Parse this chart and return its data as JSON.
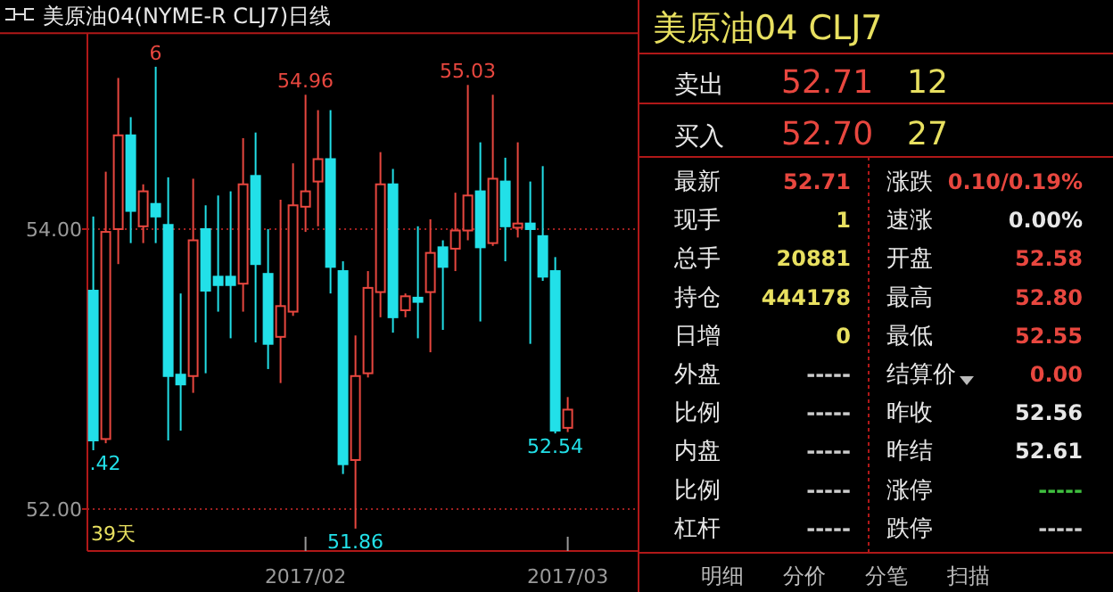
{
  "chart_data": [
    {
      "type": "candlestick",
      "title": "美原油04(NYME-R CLJ7)日线",
      "categories": [
        null,
        null,
        null,
        null,
        null,
        null,
        null,
        null,
        null,
        null,
        null,
        null,
        null,
        null,
        null,
        null,
        null,
        "2017/02",
        null,
        null,
        null,
        null,
        null,
        null,
        null,
        null,
        null,
        null,
        null,
        null,
        null,
        null,
        null,
        null,
        null,
        null,
        null,
        null,
        "2017/03"
      ],
      "ohlc": [
        [
          53.56,
          54.09,
          52.42,
          52.49
        ],
        [
          52.5,
          54.41,
          52.47,
          53.98
        ],
        [
          54.0,
          55.08,
          53.75,
          54.67
        ],
        [
          54.67,
          54.8,
          53.9,
          54.13
        ],
        [
          54.02,
          54.32,
          53.9,
          54.27
        ],
        [
          54.18,
          55.16,
          53.9,
          54.09
        ],
        [
          54.03,
          54.37,
          52.49,
          52.95
        ],
        [
          52.96,
          53.54,
          52.56,
          52.89
        ],
        [
          52.95,
          54.36,
          52.83,
          53.92
        ],
        [
          54.0,
          54.17,
          52.97,
          53.56
        ],
        [
          53.66,
          54.24,
          53.41,
          53.6
        ],
        [
          53.66,
          54.27,
          53.22,
          53.6
        ],
        [
          53.61,
          54.65,
          53.41,
          54.32
        ],
        [
          54.38,
          54.69,
          53.19,
          53.75
        ],
        [
          53.68,
          54.0,
          53.0,
          53.18
        ],
        [
          53.23,
          54.21,
          52.9,
          53.45
        ],
        [
          53.41,
          54.47,
          53.38,
          54.17
        ],
        [
          54.16,
          54.96,
          53.98,
          54.27
        ],
        [
          54.34,
          54.85,
          54.02,
          54.5
        ],
        [
          54.5,
          54.85,
          53.54,
          53.73
        ],
        [
          53.7,
          53.77,
          52.25,
          52.32
        ],
        [
          52.35,
          53.24,
          51.86,
          52.95
        ],
        [
          52.97,
          53.7,
          52.94,
          53.58
        ],
        [
          53.55,
          54.55,
          53.37,
          54.32
        ],
        [
          54.32,
          54.43,
          53.26,
          53.37
        ],
        [
          53.42,
          53.54,
          53.37,
          53.52
        ],
        [
          53.51,
          54.02,
          53.22,
          53.48
        ],
        [
          53.55,
          54.07,
          53.12,
          53.83
        ],
        [
          53.87,
          53.92,
          53.28,
          53.73
        ],
        [
          53.86,
          54.26,
          53.7,
          53.99
        ],
        [
          53.99,
          55.03,
          53.92,
          54.24
        ],
        [
          54.27,
          54.62,
          53.34,
          53.87
        ],
        [
          53.9,
          54.96,
          53.88,
          54.36
        ],
        [
          54.34,
          54.51,
          53.77,
          54.02
        ],
        [
          54.01,
          54.62,
          53.94,
          54.04
        ],
        [
          54.04,
          54.34,
          53.18,
          54.0
        ],
        [
          53.95,
          54.45,
          53.63,
          53.66
        ],
        [
          53.7,
          53.8,
          52.54,
          52.56
        ],
        [
          52.58,
          52.8,
          52.55,
          52.71
        ]
      ],
      "ylim": [
        51.7,
        55.4
      ],
      "yticks": [
        {
          "value": 52,
          "label": "52.00"
        },
        {
          "value": 54,
          "label": "54.00"
        }
      ],
      "grid": "y",
      "annotations": [
        {
          "text": "6",
          "y": 55.16
        },
        {
          "text": "54.96",
          "y": 54.96
        },
        {
          "text": "55.03",
          "y": 55.03
        },
        {
          "text": ".42",
          "y": 52.42
        },
        {
          "text": "51.86",
          "y": 51.86
        },
        {
          "text": "52.54",
          "y": 52.54
        },
        "39天"
      ]
    },
    {
      "type": "other",
      "title": "美原油04 CLJ7",
      "annotations": [
        "卖出",
        "52.71",
        "12",
        "买入",
        "52.70",
        "27",
        "最新",
        "52.71",
        "涨跌",
        "0.10/0.19%",
        "现手",
        "1",
        "速涨",
        "0.00%",
        "总手",
        "20881",
        "开盘",
        "52.58",
        "持仓",
        "444178",
        "最高",
        "52.80",
        "日增",
        "0",
        "最低",
        "52.55",
        "外盘",
        "-----",
        "结算价",
        "0.00",
        "比例",
        "-----",
        "昨收",
        "52.56",
        "内盘",
        "-----",
        "昨结",
        "52.61",
        "比例",
        "-----",
        "涨停",
        "-----",
        "杠杆",
        "-----",
        "跌停",
        "-----",
        "明细",
        "分价",
        "分笔",
        "扫描"
      ]
    }
  ]
}
